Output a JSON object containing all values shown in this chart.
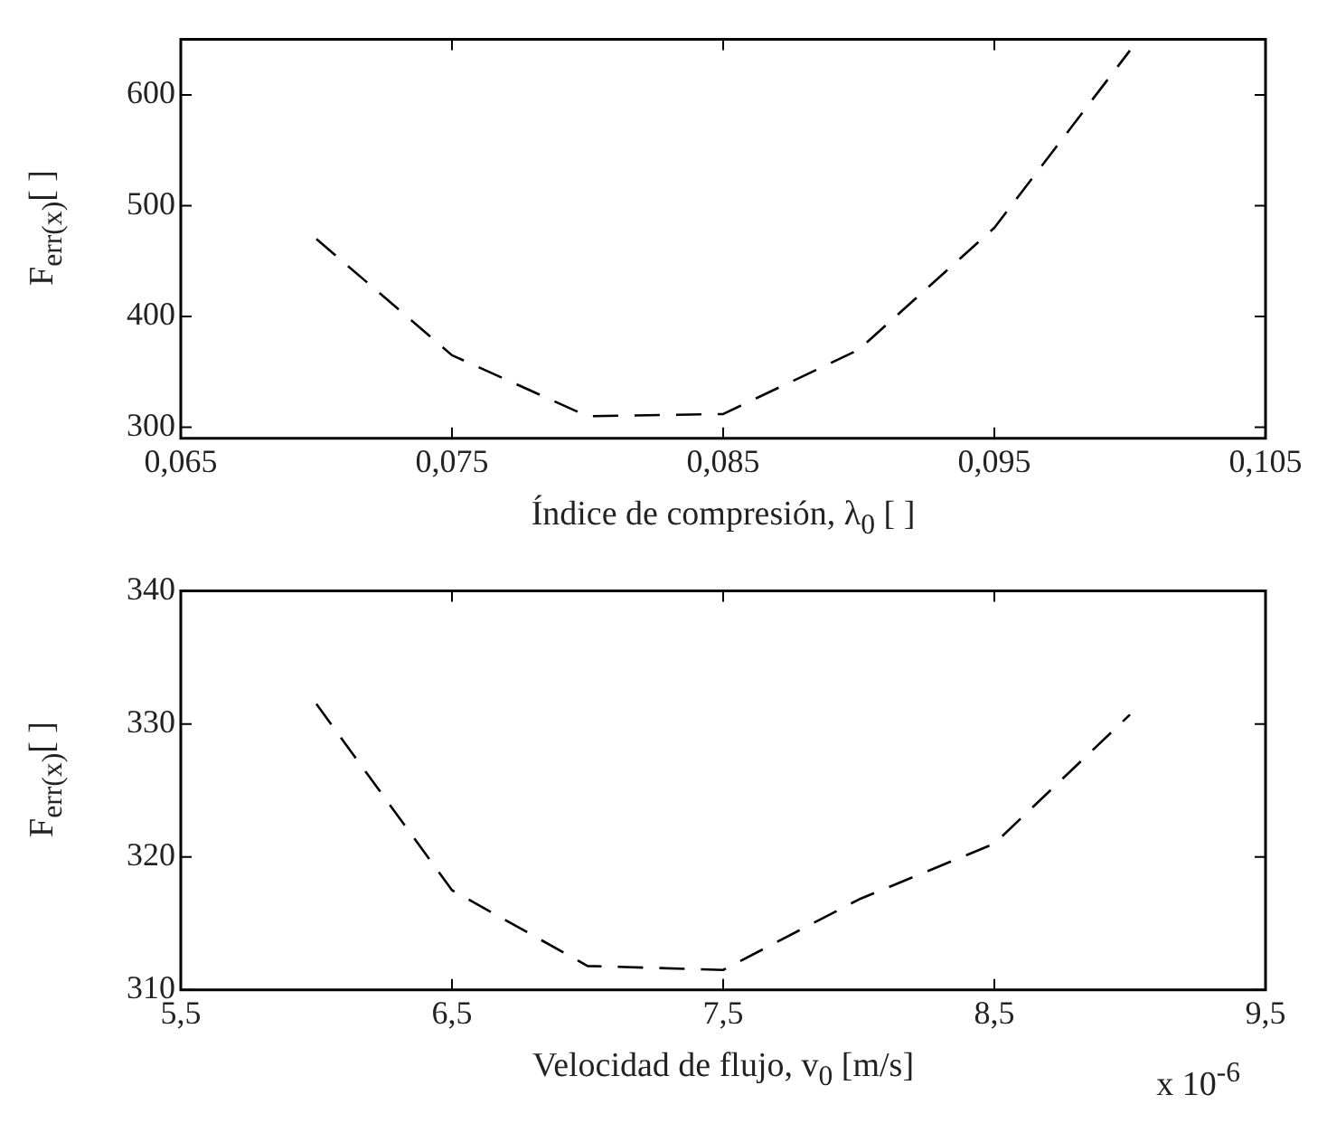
{
  "chart_data": [
    {
      "type": "line",
      "xlabel": "Índice de compresión, λ$_{0}$ [ ]",
      "ylabel": "F$_{err(x)}$[ ]",
      "x": [
        0.07,
        0.075,
        0.08,
        0.085,
        0.09,
        0.095,
        0.1
      ],
      "series": [
        {
          "color": "#000000",
          "values": [
            470,
            365,
            310,
            312,
            370,
            480,
            640
          ]
        }
      ],
      "xlim": [
        0.065,
        0.105
      ],
      "xticks": [
        {
          "value": 0.065,
          "label": "0,065"
        },
        {
          "value": 0.075,
          "label": "0,075"
        },
        {
          "value": 0.085,
          "label": "0,085"
        },
        {
          "value": 0.095,
          "label": "0,095"
        },
        {
          "value": 0.105,
          "label": "0,105"
        }
      ],
      "ylim": [
        290,
        650
      ],
      "yticks": [
        300,
        400,
        500,
        600
      ],
      "grid": false,
      "legend": false,
      "line_style": "dashed",
      "marker": "none"
    },
    {
      "type": "line",
      "xlabel": "Velocidad de flujo, v$_{0}$  [m/s]",
      "ylabel": "F$_{err(x)}$[ ]",
      "annotations": [
        "x 10$^{-6}$"
      ],
      "x": [
        6,
        6.5,
        7,
        7.5,
        8,
        8.5,
        9
      ],
      "series": [
        {
          "color": "#000000",
          "values": [
            331.5,
            317.5,
            311.8,
            311.5,
            316.8,
            321,
            330.7
          ]
        }
      ],
      "xlim": [
        5.5,
        9.5
      ],
      "xticks": [
        {
          "value": 5.5,
          "label": "5,5"
        },
        {
          "value": 6.5,
          "label": "6,5"
        },
        {
          "value": 7.5,
          "label": "7,5"
        },
        {
          "value": 8.5,
          "label": "8,5"
        },
        {
          "value": 9.5,
          "label": "9,5"
        }
      ],
      "ylim": [
        310,
        340
      ],
      "yticks": [
        310,
        320,
        330,
        340
      ],
      "grid": false,
      "legend": false,
      "line_style": "dashed",
      "marker": "none"
    }
  ]
}
